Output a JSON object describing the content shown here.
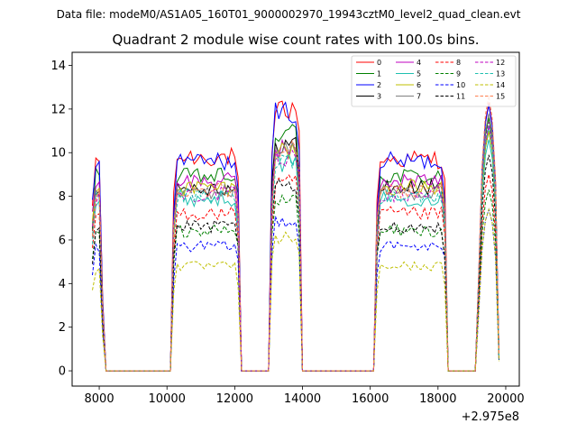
{
  "figure": {
    "suptitle": "Data file: modeM0/AS1A05_160T01_9000002970_19943cztM0_level2_quad_clean.evt",
    "x_offset_label": "+2.975e8"
  },
  "chart_data": {
    "type": "line",
    "title": "Quadrant 2 module wise count rates with 100.0s bins.",
    "xlabel": "",
    "ylabel": "",
    "x_offset": 297500000,
    "xlim": [
      7200,
      20400
    ],
    "ylim": [
      -0.7,
      14.6
    ],
    "xticks": [
      8000,
      10000,
      12000,
      14000,
      16000,
      18000,
      20000
    ],
    "xtick_labels": [
      "8000",
      "10000",
      "12000",
      "14000",
      "16000",
      "18000",
      "20000"
    ],
    "yticks": [
      0,
      2,
      4,
      6,
      8,
      10,
      12,
      14
    ],
    "ytick_labels": [
      "0",
      "2",
      "4",
      "6",
      "8",
      "10",
      "12",
      "14"
    ],
    "grid": false,
    "legend": {
      "position": "top-right",
      "columns": 4
    },
    "segments": [
      {
        "x_start": 7800,
        "n_bins": 4
      },
      {
        "x_start": 8200,
        "n_bins": 20,
        "level": "zero"
      },
      {
        "x_start": 10200,
        "n_bins": 20
      },
      {
        "x_start": 12200,
        "n_bins": 9,
        "level": "zero"
      },
      {
        "x_start": 13100,
        "n_bins": 9
      },
      {
        "x_start": 14000,
        "n_bins": 22,
        "level": "zero"
      },
      {
        "x_start": 16200,
        "n_bins": 21
      },
      {
        "x_start": 18300,
        "n_bins": 9,
        "level": "zero"
      },
      {
        "x_start": 19200,
        "n_bins": 7
      }
    ],
    "series": [
      {
        "name": "0",
        "color": "#ff0000",
        "dashed": false,
        "levels": [
          9.7,
          9.8,
          12.0,
          9.7,
          12.3
        ]
      },
      {
        "name": "1",
        "color": "#008000",
        "dashed": false,
        "levels": [
          8.9,
          8.9,
          10.9,
          8.9,
          11.6
        ]
      },
      {
        "name": "2",
        "color": "#0000ff",
        "dashed": false,
        "levels": [
          9.6,
          9.6,
          11.9,
          9.6,
          12.2
        ]
      },
      {
        "name": "3",
        "color": "#000000",
        "dashed": false,
        "levels": [
          8.4,
          8.4,
          10.4,
          8.4,
          11.0
        ]
      },
      {
        "name": "4",
        "color": "#bf00bf",
        "dashed": false,
        "levels": [
          8.7,
          8.7,
          10.2,
          8.7,
          11.2
        ]
      },
      {
        "name": "5",
        "color": "#1fc0b0",
        "dashed": false,
        "levels": [
          7.9,
          7.9,
          9.5,
          7.9,
          10.6
        ]
      },
      {
        "name": "6",
        "color": "#bfbf00",
        "dashed": false,
        "levels": [
          8.3,
          8.4,
          10.1,
          8.4,
          11.0
        ]
      },
      {
        "name": "7",
        "color": "#808080",
        "dashed": false,
        "levels": [
          8.2,
          8.2,
          10.2,
          8.2,
          11.8
        ]
      },
      {
        "name": "8",
        "color": "#ff0000",
        "dashed": true,
        "levels": [
          7.2,
          7.2,
          8.6,
          7.2,
          9.0
        ]
      },
      {
        "name": "9",
        "color": "#008000",
        "dashed": true,
        "levels": [
          6.3,
          6.4,
          7.8,
          6.4,
          8.3
        ]
      },
      {
        "name": "10",
        "color": "#0000ff",
        "dashed": true,
        "levels": [
          5.6,
          5.7,
          6.9,
          5.7,
          7.4
        ]
      },
      {
        "name": "11",
        "color": "#000000",
        "dashed": true,
        "levels": [
          6.5,
          6.6,
          8.4,
          6.6,
          9.9
        ]
      },
      {
        "name": "12",
        "color": "#bf00bf",
        "dashed": true,
        "levels": [
          8.0,
          8.1,
          9.8,
          8.1,
          11.4
        ]
      },
      {
        "name": "13",
        "color": "#1fc0b0",
        "dashed": true,
        "levels": [
          7.9,
          8.0,
          9.7,
          8.0,
          11.2
        ]
      },
      {
        "name": "14",
        "color": "#bfbf00",
        "dashed": true,
        "levels": [
          4.6,
          4.8,
          6.1,
          4.8,
          7.4
        ]
      },
      {
        "name": "15",
        "color": "#ff7f50",
        "dashed": true,
        "levels": [
          8.2,
          8.3,
          10.2,
          8.3,
          12.6
        ]
      }
    ]
  }
}
